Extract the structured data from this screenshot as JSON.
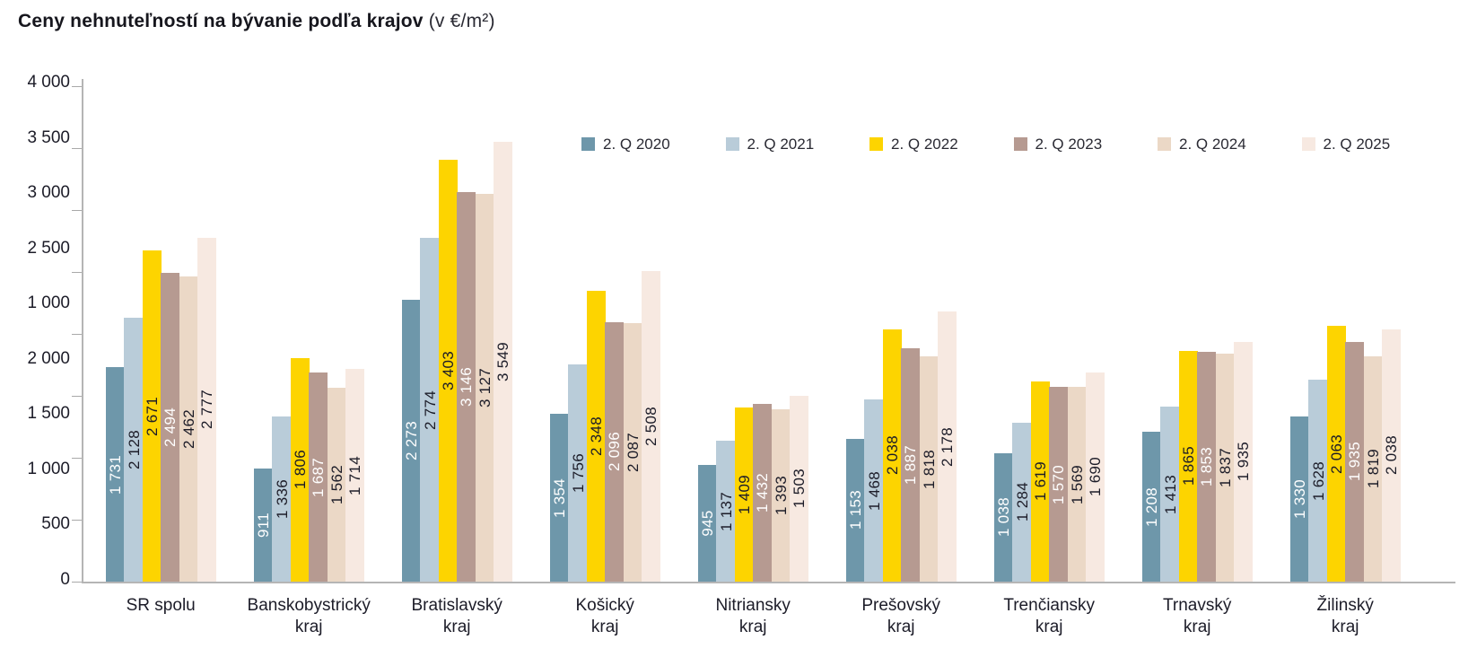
{
  "title": {
    "main": "Ceny nehnuteľností na bývanie podľa krajov",
    "unit_suffix": "(v €/m²)"
  },
  "chart_data": {
    "type": "bar",
    "title": "Ceny nehnuteľností na bývanie podľa krajov (v €/m²)",
    "xlabel": "",
    "ylabel": "",
    "ylim": [
      0,
      4000
    ],
    "y_tick_step": 500,
    "grid": false,
    "legend_position": "top-right-inside",
    "value_labels": "rotated 90°, centered inside bars, thousands separated by space",
    "y_axis": {
      "tick_labels_top_to_bottom": [
        "4 000",
        "3 500",
        "3 000",
        "2 500",
        "1 000",
        "2 000",
        "1 500",
        "1 000",
        "500",
        "0"
      ],
      "note_as_displayed": "axis labels reproduced exactly as shown, including the anomalous extra 1 000 between 2 500 and 2 000"
    },
    "categories": [
      "SR spolu",
      "Banskobystrický kraj",
      "Bratislavský kraj",
      "Košický kraj",
      "Nitriansky kraj",
      "Prešovský kraj",
      "Trenčiansky kraj",
      "Trnavský kraj",
      "Žilinský kraj"
    ],
    "series": [
      {
        "name": "2. Q 2020",
        "color": "#6e97aa",
        "label_color": "#ffffff",
        "values": [
          1731,
          911,
          2273,
          1354,
          945,
          1153,
          1038,
          1208,
          1330
        ]
      },
      {
        "name": "2. Q 2021",
        "color": "#b9ccd9",
        "label_color": "#1c1c28",
        "values": [
          2128,
          1336,
          2774,
          1756,
          1137,
          1468,
          1284,
          1413,
          1628
        ]
      },
      {
        "name": "2. Q 2022",
        "color": "#fdd400",
        "label_color": "#1c1c28",
        "values": [
          2671,
          1806,
          3403,
          2348,
          1409,
          2038,
          1619,
          1865,
          2063
        ]
      },
      {
        "name": "2. Q 2023",
        "color": "#b69a91",
        "label_color": "#ffffff",
        "values": [
          2494,
          1687,
          3146,
          2096,
          1432,
          1887,
          1570,
          1853,
          1935
        ]
      },
      {
        "name": "2. Q 2024",
        "color": "#ebd8c6",
        "label_color": "#1c1c28",
        "values": [
          2462,
          1562,
          3127,
          2087,
          1393,
          1818,
          1569,
          1837,
          1819
        ]
      },
      {
        "name": "2. Q 2025",
        "color": "#f7e9e1",
        "label_color": "#1c1c28",
        "values": [
          2777,
          1714,
          3549,
          2508,
          1503,
          2178,
          1690,
          1935,
          2038
        ]
      }
    ]
  }
}
